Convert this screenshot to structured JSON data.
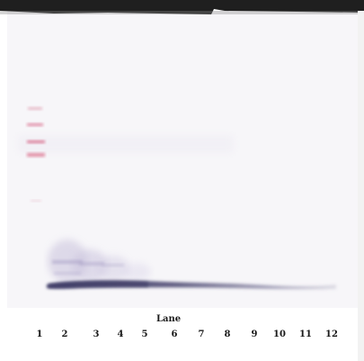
{
  "lane_axis": {
    "title": "Lane",
    "labels": [
      "1",
      "2",
      "3",
      "4",
      "5",
      "6",
      "7",
      "8",
      "9",
      "10",
      "11",
      "12"
    ]
  },
  "colors": {
    "membrane": "#f6f5f8",
    "band": "#4a4770",
    "smear": "#b9b2cf",
    "ladder": "#d85a7a",
    "edge": "#2a2a2a"
  }
}
